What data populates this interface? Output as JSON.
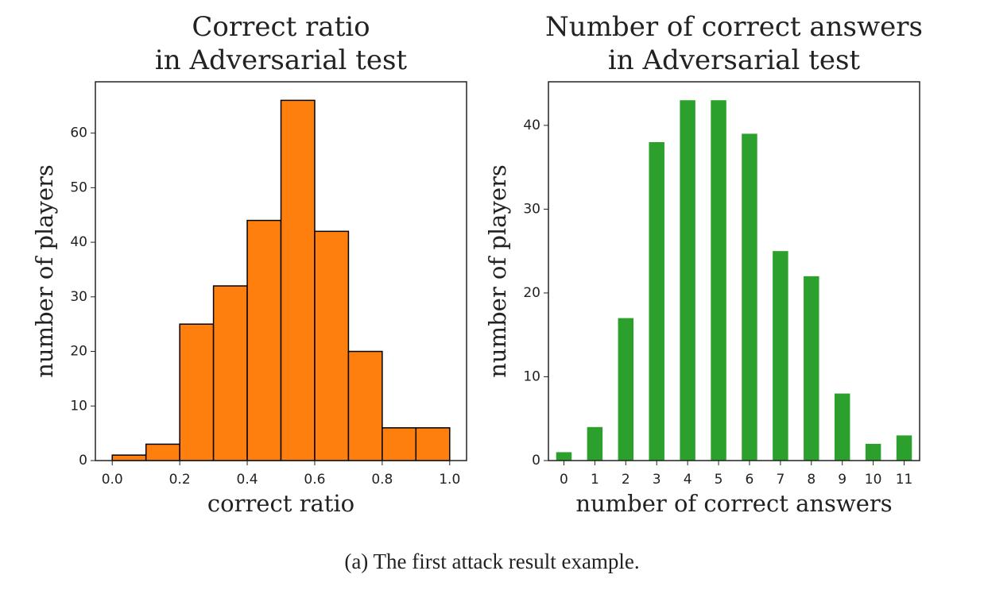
{
  "chart_data": [
    {
      "type": "histogram",
      "title": [
        "Correct ratio",
        "in Adversarial test"
      ],
      "x_label": "correct ratio",
      "y_label": "number of players",
      "bins": [
        0.0,
        0.1,
        0.2,
        0.3,
        0.4,
        0.5,
        0.6,
        0.7,
        0.8,
        0.9,
        1.0
      ],
      "values": [
        1,
        3,
        25,
        32,
        44,
        66,
        42,
        20,
        6,
        6
      ],
      "color": "#ff7f0e",
      "edgecolor": "#000000",
      "xlim": [
        -0.05,
        1.05
      ],
      "xticks": [
        {
          "value": 0,
          "label": "0.0"
        },
        0.2,
        0.4,
        0.6,
        0.8,
        {
          "value": 1,
          "label": "1.0"
        }
      ],
      "ylim": [
        0,
        69.4
      ],
      "yticks": [
        0,
        10,
        20,
        30,
        40,
        50,
        60
      ]
    },
    {
      "type": "bar",
      "title": [
        "Number of correct answers",
        "in Adversarial test"
      ],
      "x_label": "number of correct answers",
      "y_label": "number of players",
      "categories": [
        "0",
        "1",
        "2",
        "3",
        "4",
        "5",
        "6",
        "7",
        "8",
        "9",
        "10",
        "11"
      ],
      "values": [
        1,
        4,
        17,
        38,
        43,
        43,
        39,
        25,
        22,
        8,
        2,
        3
      ],
      "color": "#2ca02c",
      "ylim": [
        0,
        45.2
      ],
      "yticks": [
        0,
        10,
        20,
        30,
        40
      ]
    }
  ],
  "caption": "(a) The first attack result example."
}
